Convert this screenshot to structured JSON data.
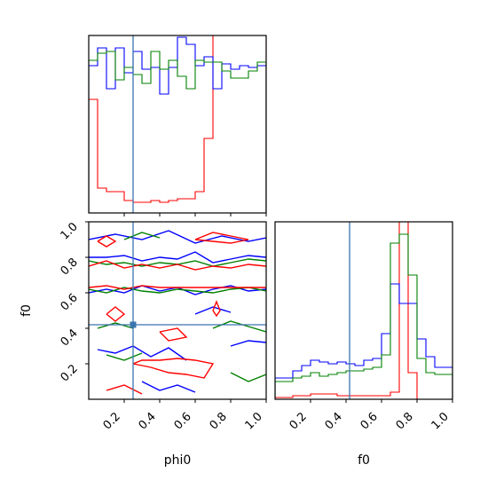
{
  "chart_data": [
    {
      "type": "histogram",
      "panel": "phi0-marginal",
      "xlim": [
        0,
        1
      ],
      "bins": 20,
      "truth": 0.25,
      "series": [
        {
          "color": "#ff0000",
          "values": [
            0.64,
            0.14,
            0.12,
            0.12,
            0.07,
            0.06,
            0.06,
            0.07,
            0.06,
            0.07,
            0.08,
            0.08,
            0.12,
            0.42,
            1.0,
            1.0,
            1.0,
            1.0,
            1.0,
            1.0
          ]
        },
        {
          "color": "#0000ff",
          "values": [
            0.83,
            0.93,
            0.7,
            0.93,
            0.79,
            0.91,
            0.81,
            0.82,
            0.67,
            0.82,
            0.99,
            0.95,
            0.83,
            0.88,
            0.7,
            0.84,
            0.81,
            0.83,
            0.82,
            0.83
          ]
        },
        {
          "color": "#008000",
          "values": [
            0.86,
            0.9,
            0.91,
            0.75,
            0.82,
            0.78,
            0.73,
            0.91,
            0.81,
            0.86,
            0.77,
            0.7,
            0.86,
            0.85,
            0.85,
            0.8,
            0.76,
            0.76,
            0.8,
            0.85
          ]
        }
      ]
    },
    {
      "type": "contour",
      "panel": "phi0-f0-joint",
      "xlabel": "phi0",
      "ylabel": "f0",
      "xlim": [
        0,
        1
      ],
      "ylim": [
        0,
        1
      ],
      "xticks": [
        "0.2",
        "0.4",
        "0.6",
        "0.8",
        "1.0"
      ],
      "yticks": [
        "0.2",
        "0.4",
        "0.6",
        "0.8",
        "1.0"
      ],
      "truth": [
        0.25,
        0.42
      ],
      "series": [
        {
          "color": "#0000ff",
          "paths": [
            [
              [
                0,
                0.8
              ],
              [
                0.1,
                0.8
              ],
              [
                0.2,
                0.81
              ],
              [
                0.3,
                0.78
              ],
              [
                0.4,
                0.8
              ],
              [
                0.5,
                0.79
              ],
              [
                0.6,
                0.83
              ],
              [
                0.7,
                0.77
              ],
              [
                0.8,
                0.79
              ],
              [
                0.9,
                0.81
              ],
              [
                1.0,
                0.8
              ]
            ],
            [
              [
                0,
                0.6
              ],
              [
                0.1,
                0.62
              ],
              [
                0.2,
                0.6
              ],
              [
                0.3,
                0.64
              ],
              [
                0.4,
                0.61
              ],
              [
                0.5,
                0.63
              ],
              [
                0.6,
                0.59
              ],
              [
                0.7,
                0.62
              ],
              [
                0.8,
                0.64
              ],
              [
                0.9,
                0.61
              ],
              [
                1.0,
                0.62
              ]
            ],
            [
              [
                0,
                0.9
              ],
              [
                0.15,
                0.93
              ],
              [
                0.3,
                0.9
              ],
              [
                0.45,
                0.95
              ],
              [
                0.6,
                0.88
              ],
              [
                0.75,
                0.92
              ],
              [
                0.9,
                0.89
              ],
              [
                1.0,
                0.91
              ]
            ],
            [
              [
                0.05,
                0.28
              ],
              [
                0.15,
                0.26
              ],
              [
                0.25,
                0.3
              ],
              [
                0.35,
                0.24
              ],
              [
                0.45,
                0.29
              ],
              [
                0.55,
                0.22
              ]
            ],
            [
              [
                0.8,
                0.3
              ],
              [
                0.9,
                0.33
              ],
              [
                1.0,
                0.32
              ]
            ],
            [
              [
                0.6,
                0.48
              ],
              [
                0.7,
                0.52
              ],
              [
                0.8,
                0.49
              ]
            ],
            [
              [
                0.3,
                0.1
              ],
              [
                0.4,
                0.05
              ],
              [
                0.5,
                0.08
              ],
              [
                0.6,
                0.04
              ]
            ]
          ]
        },
        {
          "color": "#008000",
          "paths": [
            [
              [
                0,
                0.78
              ],
              [
                0.1,
                0.76
              ],
              [
                0.2,
                0.77
              ],
              [
                0.3,
                0.75
              ],
              [
                0.4,
                0.77
              ],
              [
                0.5,
                0.76
              ],
              [
                0.6,
                0.78
              ],
              [
                0.7,
                0.75
              ],
              [
                0.8,
                0.77
              ],
              [
                0.9,
                0.79
              ],
              [
                1.0,
                0.78
              ]
            ],
            [
              [
                0,
                0.62
              ],
              [
                0.1,
                0.6
              ],
              [
                0.2,
                0.63
              ],
              [
                0.3,
                0.61
              ],
              [
                0.4,
                0.6
              ],
              [
                0.5,
                0.62
              ],
              [
                0.6,
                0.61
              ],
              [
                0.7,
                0.6
              ],
              [
                0.8,
                0.62
              ],
              [
                0.9,
                0.63
              ],
              [
                1.0,
                0.61
              ]
            ],
            [
              [
                0.2,
                0.9
              ],
              [
                0.3,
                0.94
              ],
              [
                0.4,
                0.91
              ]
            ],
            [
              [
                0.7,
                0.4
              ],
              [
                0.8,
                0.44
              ],
              [
                0.9,
                0.41
              ],
              [
                1.0,
                0.38
              ]
            ],
            [
              [
                0.1,
                0.25
              ],
              [
                0.2,
                0.22
              ],
              [
                0.3,
                0.26
              ]
            ],
            [
              [
                0.8,
                0.15
              ],
              [
                0.9,
                0.1
              ],
              [
                1.0,
                0.14
              ]
            ],
            [
              [
                0.05,
                0.4
              ],
              [
                0.15,
                0.43
              ],
              [
                0.25,
                0.4
              ]
            ]
          ]
        },
        {
          "color": "#ff0000",
          "paths": [
            [
              [
                0,
                0.75
              ],
              [
                0.1,
                0.78
              ],
              [
                0.2,
                0.74
              ],
              [
                0.3,
                0.76
              ],
              [
                0.4,
                0.74
              ],
              [
                0.5,
                0.76
              ],
              [
                0.6,
                0.73
              ],
              [
                0.7,
                0.75
              ],
              [
                0.8,
                0.74
              ],
              [
                0.9,
                0.76
              ],
              [
                1.0,
                0.75
              ]
            ],
            [
              [
                0,
                0.63
              ],
              [
                0.1,
                0.64
              ],
              [
                0.2,
                0.62
              ],
              [
                0.3,
                0.64
              ],
              [
                0.4,
                0.63
              ],
              [
                0.5,
                0.63
              ],
              [
                0.6,
                0.63
              ],
              [
                0.7,
                0.63
              ],
              [
                0.8,
                0.63
              ],
              [
                0.9,
                0.63
              ],
              [
                1.0,
                0.63
              ]
            ],
            [
              [
                0.05,
                0.89
              ],
              [
                0.1,
                0.92
              ],
              [
                0.15,
                0.89
              ],
              [
                0.1,
                0.86
              ],
              [
                0.05,
                0.89
              ]
            ],
            [
              [
                0.6,
                0.9
              ],
              [
                0.7,
                0.94
              ],
              [
                0.8,
                0.92
              ],
              [
                0.9,
                0.9
              ],
              [
                0.8,
                0.88
              ],
              [
                0.7,
                0.89
              ],
              [
                0.6,
                0.9
              ]
            ],
            [
              [
                0.1,
                0.48
              ],
              [
                0.15,
                0.52
              ],
              [
                0.2,
                0.48
              ],
              [
                0.15,
                0.44
              ],
              [
                0.1,
                0.48
              ]
            ],
            [
              [
                0.4,
                0.38
              ],
              [
                0.5,
                0.4
              ],
              [
                0.55,
                0.35
              ],
              [
                0.45,
                0.33
              ],
              [
                0.4,
                0.38
              ]
            ],
            [
              [
                0.25,
                0.2
              ],
              [
                0.35,
                0.18
              ],
              [
                0.45,
                0.15
              ],
              [
                0.55,
                0.14
              ],
              [
                0.65,
                0.12
              ],
              [
                0.7,
                0.2
              ],
              [
                0.6,
                0.22
              ],
              [
                0.5,
                0.23
              ],
              [
                0.4,
                0.22
              ],
              [
                0.3,
                0.22
              ],
              [
                0.25,
                0.2
              ]
            ],
            [
              [
                0.1,
                0.05
              ],
              [
                0.2,
                0.08
              ],
              [
                0.3,
                0.03
              ]
            ],
            [
              [
                0.7,
                0.5
              ],
              [
                0.72,
                0.55
              ],
              [
                0.74,
                0.5
              ],
              [
                0.72,
                0.47
              ],
              [
                0.7,
                0.5
              ]
            ]
          ]
        }
      ]
    },
    {
      "type": "histogram",
      "panel": "f0-marginal",
      "xlabel": "f0",
      "xlim": [
        0,
        1
      ],
      "xticks": [
        "0.2",
        "0.4",
        "0.6",
        "0.8",
        "1.0"
      ],
      "bins": 20,
      "truth": 0.42,
      "series": [
        {
          "color": "#ff0000",
          "values": [
            0.01,
            0.01,
            0.02,
            0.02,
            0.03,
            0.03,
            0.03,
            0.02,
            0.02,
            0.02,
            0.02,
            0.02,
            0.02,
            0.04,
            1.0,
            0.15,
            0.0,
            0.0,
            0.0,
            0.0
          ]
        },
        {
          "color": "#0000ff",
          "values": [
            0.12,
            0.12,
            0.16,
            0.19,
            0.22,
            0.21,
            0.2,
            0.21,
            0.2,
            0.19,
            0.22,
            0.23,
            0.37,
            0.65,
            0.54,
            0.54,
            0.34,
            0.24,
            0.18,
            0.18
          ]
        },
        {
          "color": "#008000",
          "values": [
            0.1,
            0.1,
            0.12,
            0.13,
            0.15,
            0.13,
            0.14,
            0.15,
            0.16,
            0.16,
            0.17,
            0.18,
            0.25,
            0.88,
            0.93,
            0.7,
            0.23,
            0.15,
            0.14,
            0.14
          ]
        }
      ]
    }
  ]
}
